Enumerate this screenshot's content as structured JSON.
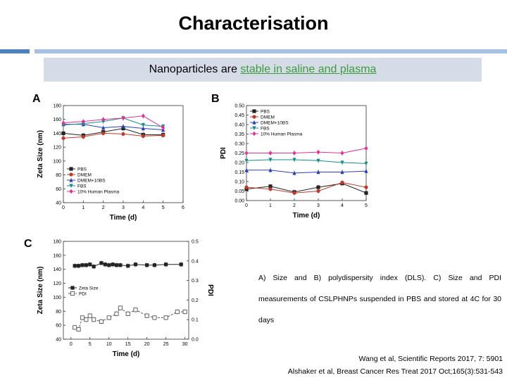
{
  "title": "Characterisation",
  "subtitle_pre": "Nanoparticles are ",
  "subtitle_hl": "stable in saline and plasma",
  "caption": "A) Size and B) polydispersity index (DLS). C) Size and PDI measurements of CSLPHNPs suspended in PBS and stored at 4C for 30 days",
  "references": [
    "Wang et al, Scientific Reports 2017, 7: 5901",
    "Alshaker et al, Breast Cancer Res Treat 2017 Oct;165(3):531-543"
  ],
  "chart_data": [
    {
      "panel": "A",
      "type": "line",
      "xlabel": "Time (d)",
      "ylabel": "Zeta Size (nm)",
      "xlim": [
        0,
        6
      ],
      "ylim": [
        40,
        180
      ],
      "xticks": [
        0,
        1,
        2,
        3,
        4,
        5,
        6
      ],
      "yticks": [
        40,
        60,
        80,
        100,
        120,
        140,
        160,
        180
      ],
      "legend_position": "bottom-left",
      "x": [
        0,
        1,
        2,
        3,
        4,
        5
      ],
      "series": [
        {
          "name": "PBS",
          "color": "#222222",
          "marker": "square",
          "values": [
            140,
            137,
            142,
            147,
            138,
            138
          ]
        },
        {
          "name": "DMEM",
          "color": "#c0392b",
          "marker": "circle",
          "values": [
            133,
            135,
            140,
            139,
            136,
            137
          ]
        },
        {
          "name": "DMEM+10BS",
          "color": "#2a3fb5",
          "marker": "triangle",
          "values": [
            153,
            153,
            148,
            150,
            147,
            145
          ]
        },
        {
          "name": "FBS",
          "color": "#1a8c8c",
          "marker": "triangle-down",
          "values": [
            152,
            154,
            157,
            162,
            152,
            150
          ]
        },
        {
          "name": "10% Human Plasma",
          "color": "#e0309a",
          "marker": "diamond",
          "values": [
            155,
            157,
            160,
            162,
            165,
            148
          ]
        }
      ]
    },
    {
      "panel": "B",
      "type": "line",
      "xlabel": "Time (d)",
      "ylabel": "PDI",
      "xlim": [
        0,
        5
      ],
      "ylim": [
        0,
        0.5
      ],
      "xticks": [
        0,
        1,
        2,
        3,
        4,
        5
      ],
      "yticks": [
        "0.00",
        "0.05",
        "0.10",
        "0.15",
        "0.20",
        "0.25",
        "0.30",
        "0.35",
        "0.40",
        "0.45",
        "0.50"
      ],
      "legend_position": "top-left",
      "x": [
        0,
        1,
        2,
        3,
        4,
        5
      ],
      "series": [
        {
          "name": "PBS",
          "color": "#222222",
          "marker": "square",
          "values": [
            0.06,
            0.075,
            0.045,
            0.07,
            0.09,
            0.04
          ]
        },
        {
          "name": "DMEM",
          "color": "#c0392b",
          "marker": "circle",
          "values": [
            0.07,
            0.06,
            0.04,
            0.05,
            0.095,
            0.07
          ]
        },
        {
          "name": "DMEM+10BS",
          "color": "#2a3fb5",
          "marker": "triangle",
          "values": [
            0.16,
            0.16,
            0.145,
            0.15,
            0.15,
            0.155
          ]
        },
        {
          "name": "FBS",
          "color": "#1a8c8c",
          "marker": "triangle-down",
          "values": [
            0.21,
            0.215,
            0.215,
            0.21,
            0.2,
            0.195
          ]
        },
        {
          "name": "10% Human Plasma",
          "color": "#e0309a",
          "marker": "diamond",
          "values": [
            0.25,
            0.25,
            0.25,
            0.255,
            0.25,
            0.275
          ]
        }
      ]
    },
    {
      "panel": "C",
      "type": "line",
      "xlabel": "Time (d)",
      "ylabel": "Zeta Size (nm)",
      "y2label": "PDI",
      "xlim": [
        -2,
        31
      ],
      "ylim": [
        40,
        180
      ],
      "y2lim": [
        0,
        0.5
      ],
      "xticks": [
        0,
        5,
        10,
        15,
        20,
        25,
        30
      ],
      "yticks": [
        40,
        60,
        80,
        100,
        120,
        140,
        160,
        180
      ],
      "y2ticks": [
        "0.0",
        "0.1",
        "0.2",
        "0.3",
        "0.4",
        "0.5"
      ],
      "legend_position": "middle-left",
      "series": [
        {
          "name": "Zeta Size",
          "axis": "left",
          "color": "#222222",
          "marker": "square-filled",
          "x": [
            1,
            2,
            3,
            4,
            5,
            6,
            8,
            9,
            10,
            11,
            12,
            13,
            15,
            17,
            20,
            22,
            25,
            29
          ],
          "values": [
            145,
            145,
            146,
            146,
            147,
            144,
            149,
            147,
            146,
            147,
            146,
            146,
            145,
            147,
            146,
            146,
            147,
            147
          ]
        },
        {
          "name": "PDI",
          "axis": "right",
          "color": "#555555",
          "marker": "square-open",
          "x": [
            1,
            2,
            3,
            4,
            5,
            6,
            8,
            10,
            12,
            13,
            15,
            17,
            20,
            22,
            25,
            28,
            30
          ],
          "values": [
            0.06,
            0.05,
            0.11,
            0.1,
            0.12,
            0.1,
            0.09,
            0.11,
            0.13,
            0.16,
            0.13,
            0.15,
            0.12,
            0.11,
            0.11,
            0.14,
            0.14
          ]
        }
      ]
    }
  ]
}
